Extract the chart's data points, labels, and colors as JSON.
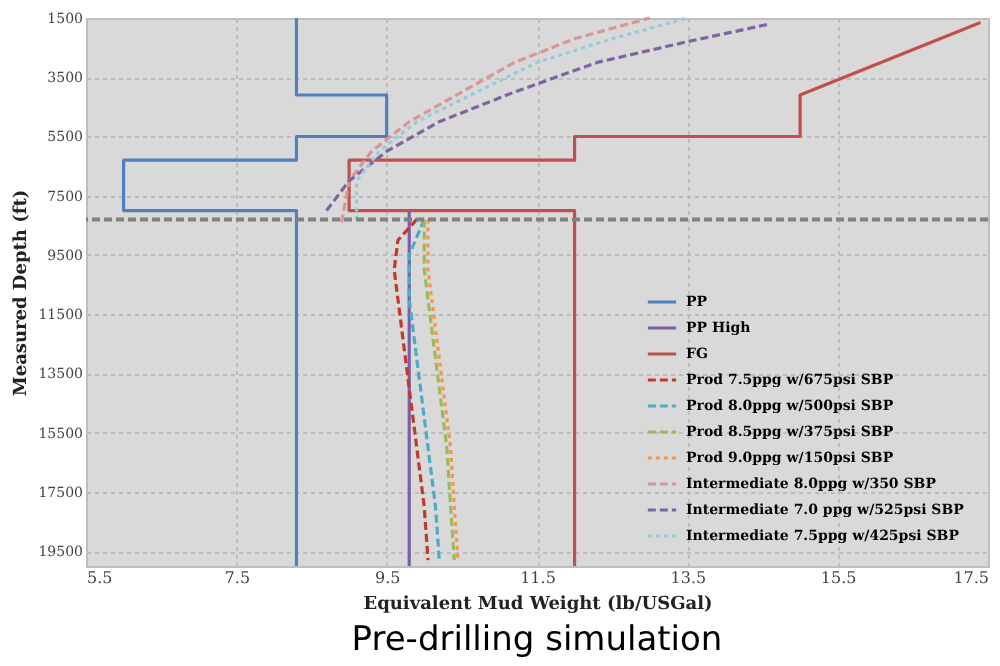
{
  "chart_data": {
    "type": "line",
    "title": "Pre-drilling simulation",
    "xlabel": "Equivalent Mud Weight (lb/USGal)",
    "ylabel": "Measured Depth (ft)",
    "xlim": [
      5.5,
      17.5
    ],
    "xticks": [
      5.5,
      7.5,
      9.5,
      11.5,
      13.5,
      15.5,
      17.5
    ],
    "ylim": [
      20000,
      1500
    ],
    "yticks": [
      1500,
      3500,
      5500,
      7500,
      9500,
      11500,
      13500,
      15500,
      17500,
      19500
    ],
    "grid": true,
    "legend": "bottom right",
    "marker": "none",
    "ref_lines": [
      {
        "axis": "y",
        "value": 8300,
        "color": "#808080",
        "line_style": "dashed"
      }
    ],
    "series": [
      {
        "name": "PP",
        "color": "#4f81bd",
        "line_style": "solid",
        "x": [
          8.3,
          8.3,
          9.5,
          9.5,
          8.3,
          8.3,
          6.0,
          6.0,
          8.3,
          8.3
        ],
        "values": [
          1500,
          4100,
          4100,
          5500,
          5500,
          6300,
          6300,
          8000,
          8000,
          20000
        ]
      },
      {
        "name": "PP High",
        "color": "#7a5ea8",
        "line_style": "solid",
        "x": [
          9.8,
          9.8
        ],
        "values": [
          8050,
          20000
        ]
      },
      {
        "name": "FG",
        "color": "#c0504d",
        "line_style": "solid",
        "x": [
          17.4,
          15.0,
          15.0,
          12.0,
          12.0,
          9.0,
          9.0,
          12.0,
          12.0
        ],
        "values": [
          1650,
          4100,
          5500,
          5500,
          6300,
          6300,
          8000,
          8000,
          20000
        ]
      },
      {
        "name": "Prod 7.5ppg w/675psi SBP",
        "color": "#c0392b",
        "line_style": "dashed",
        "x": [
          9.9,
          9.65,
          9.6,
          9.7,
          9.8,
          9.9,
          10.0,
          10.05
        ],
        "values": [
          8300,
          9000,
          10000,
          12000,
          14000,
          16000,
          18000,
          19800
        ]
      },
      {
        "name": "Prod 8.0ppg w/500psi SBP",
        "color": "#4bacc6",
        "line_style": "dashed",
        "x": [
          10.0,
          9.8,
          9.8,
          9.95,
          10.05,
          10.15,
          10.2
        ],
        "values": [
          8300,
          9500,
          11000,
          14000,
          16000,
          18000,
          19800
        ]
      },
      {
        "name": "Prod 8.5ppg w/375psi SBP",
        "color": "#9bbb59",
        "line_style": "dashed",
        "x": [
          10.0,
          10.0,
          10.1,
          10.2,
          10.3,
          10.35,
          10.4
        ],
        "values": [
          8300,
          10000,
          12000,
          14000,
          16000,
          18000,
          19800
        ]
      },
      {
        "name": "Prod 9.0ppg w/150psi SBP",
        "color": "#f79646",
        "line_style": "dotted",
        "x": [
          10.05,
          10.05,
          10.15,
          10.25,
          10.35,
          10.4,
          10.45
        ],
        "values": [
          8300,
          10000,
          12000,
          14000,
          16000,
          18000,
          19800
        ]
      },
      {
        "name": "Intermediate 8.0ppg w/350 SBP",
        "color": "#d99694",
        "line_style": "dashed",
        "x": [
          8.9,
          9.0,
          9.3,
          9.8,
          10.5,
          11.2,
          12.0,
          13.0
        ],
        "values": [
          8400,
          7000,
          6000,
          5000,
          4000,
          3000,
          2200,
          1500
        ]
      },
      {
        "name": "Intermediate 7.0 ppg w/525psi SBP",
        "color": "#8064a2",
        "line_style": "dashed",
        "x": [
          8.7,
          9.0,
          9.5,
          10.2,
          11.2,
          12.3,
          13.5,
          14.6
        ],
        "values": [
          8000,
          7000,
          6000,
          5000,
          4000,
          3000,
          2300,
          1700
        ]
      },
      {
        "name": "Intermediate 7.5ppg w/425psi SBP",
        "color": "#93cddd",
        "line_style": "dotted",
        "x": [
          9.1,
          9.1,
          9.4,
          9.9,
          10.7,
          11.5,
          12.5,
          13.5
        ],
        "values": [
          8300,
          7000,
          6000,
          5000,
          4000,
          3000,
          2200,
          1500
        ]
      }
    ]
  }
}
